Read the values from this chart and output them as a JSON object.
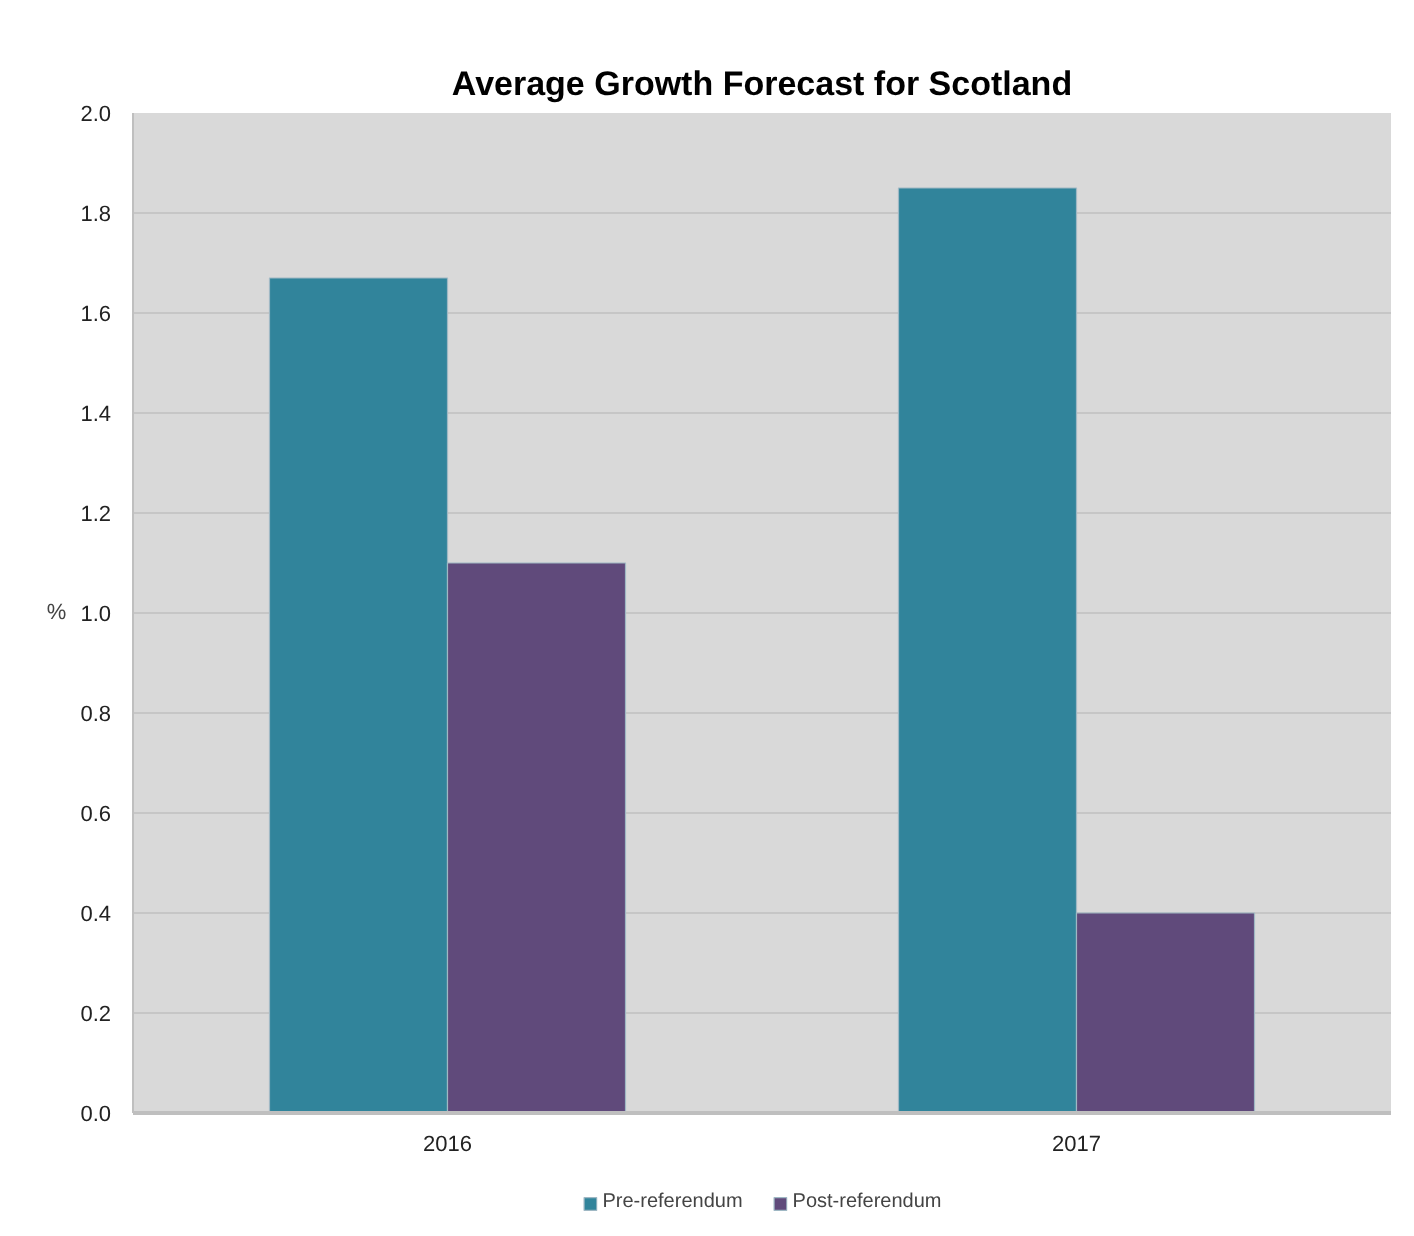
{
  "chart_data": {
    "type": "bar",
    "title": "Average Growth Forecast for Scotland",
    "ylabel": "%",
    "categories": [
      "2016",
      "2017"
    ],
    "series": [
      {
        "name": "Pre-referendum",
        "color": "#31849b",
        "values": [
          1.67,
          1.85
        ]
      },
      {
        "name": "Post-referendum",
        "color": "#604a7b",
        "values": [
          1.1,
          0.4
        ]
      }
    ],
    "ylim": [
      0,
      2
    ],
    "yticks": [
      {
        "value": 0,
        "label": "0.0"
      },
      0.2,
      0.4,
      0.6,
      0.8,
      {
        "value": 1,
        "label": "1.0"
      },
      1.2,
      1.4,
      1.6,
      1.8,
      {
        "value": 2,
        "label": "2.0"
      }
    ],
    "grid": "y",
    "legend": "bottom"
  }
}
